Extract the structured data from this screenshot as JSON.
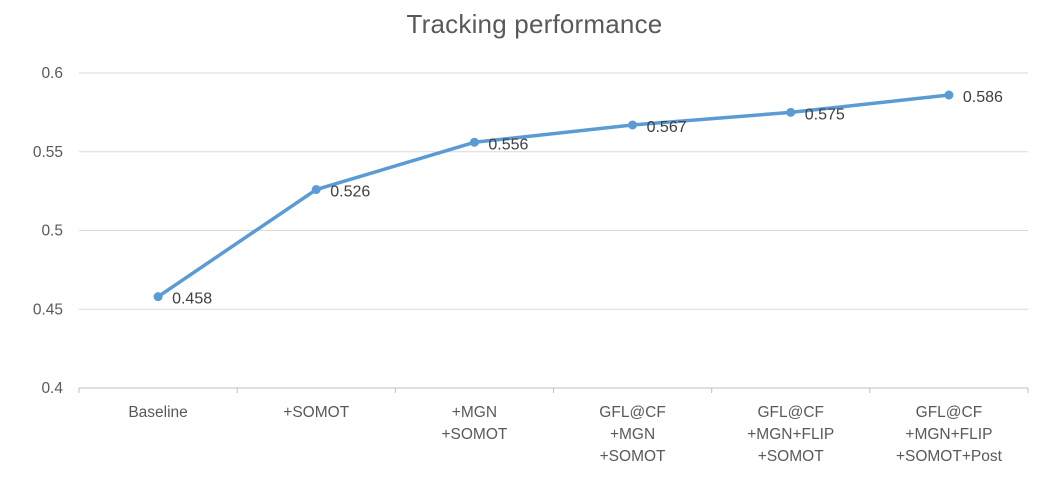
{
  "chart": {
    "title": "Tracking performance"
  },
  "chart_data": {
    "type": "line",
    "title": "Tracking performance",
    "categories": [
      [
        "Baseline"
      ],
      [
        "+SOMOT"
      ],
      [
        "+MGN",
        "+SOMOT"
      ],
      [
        "GFL@CF",
        "+MGN",
        "+SOMOT"
      ],
      [
        "GFL@CF",
        "+MGN+FLIP",
        "+SOMOT"
      ],
      [
        "GFL@CF",
        "+MGN+FLIP",
        "+SOMOT+Post"
      ]
    ],
    "values": [
      0.458,
      0.526,
      0.556,
      0.567,
      0.575,
      0.586
    ],
    "data_labels": [
      "0.458",
      "0.526",
      "0.556",
      "0.567",
      "0.575",
      "0.586"
    ],
    "xlabel": "",
    "ylabel": "",
    "ylim": [
      0.4,
      0.6
    ],
    "yticks": [
      0.4,
      0.45,
      0.5,
      0.55,
      0.6
    ],
    "ytick_labels": [
      "0.4",
      "0.45",
      "0.5",
      "0.55",
      "0.6"
    ],
    "grid": true,
    "legend": "none",
    "marker": "circle",
    "colors": {
      "line": "#5B9BD5",
      "marker": "#5B9BD5",
      "gridline": "#D9D9D9",
      "axis_line": "#BFBFBF",
      "title_text": "#595959",
      "axis_text": "#595959",
      "data_label_text": "#404040",
      "background": "#FFFFFF"
    }
  }
}
